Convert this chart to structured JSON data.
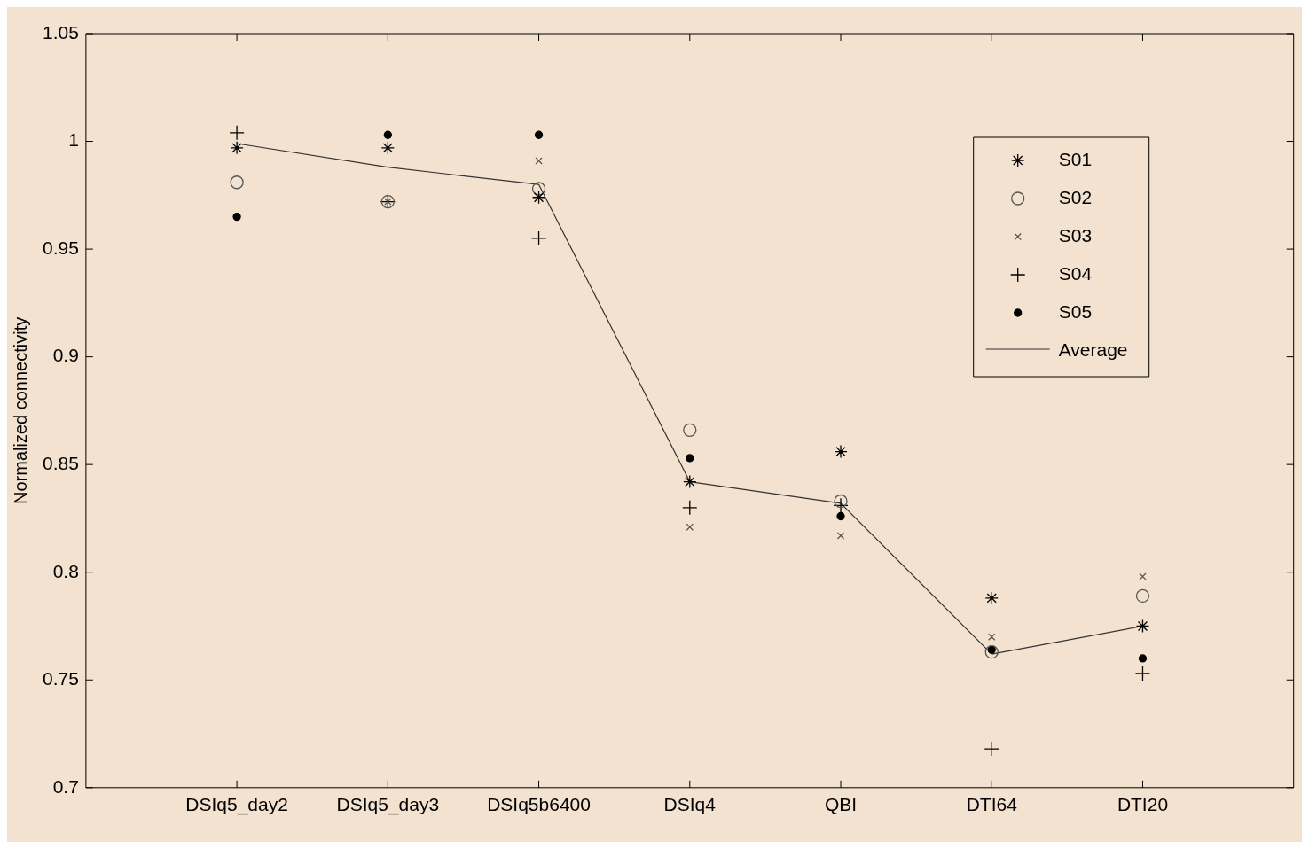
{
  "chart_data": {
    "type": "scatter",
    "ylabel": "Normalized connectivity",
    "categories": [
      "DSIq5_day2",
      "DSIq5_day3",
      "DSIq5b6400",
      "DSIq4",
      "QBI",
      "DTI64",
      "DTI20"
    ],
    "ylim": [
      0.7,
      1.05
    ],
    "yticks": [
      0.7,
      0.75,
      0.8,
      0.85,
      0.9,
      0.95,
      1,
      1.05
    ],
    "grid": false,
    "legend": "top right",
    "series": [
      {
        "name": "S01",
        "type": "scatter",
        "marker": "cross",
        "color": "#000000",
        "values": [
          0.997,
          0.997,
          0.974,
          0.842,
          0.856,
          0.788,
          0.775
        ]
      },
      {
        "name": "S02",
        "type": "scatter",
        "marker": "circle",
        "color": "#555555",
        "values": [
          0.981,
          0.972,
          0.978,
          0.866,
          0.833,
          0.763,
          0.789
        ]
      },
      {
        "name": "S03",
        "type": "scatter",
        "marker": "cross",
        "color": "#555555",
        "values": [
          null,
          0.972,
          0.991,
          0.821,
          0.817,
          0.77,
          0.798
        ]
      },
      {
        "name": "S04",
        "type": "scatter",
        "marker": "cross",
        "color": "#000000",
        "values": [
          1.004,
          0.972,
          0.955,
          0.83,
          0.831,
          0.718,
          0.753
        ]
      },
      {
        "name": "S05",
        "type": "scatter",
        "marker": "circle",
        "color": "#000000",
        "values": [
          0.965,
          1.003,
          1.003,
          0.853,
          0.826,
          0.764,
          0.76
        ]
      },
      {
        "name": "Average",
        "type": "line",
        "marker": "none",
        "line_style": "solid",
        "color": "#333333",
        "values": [
          0.999,
          0.988,
          0.98,
          0.842,
          0.832,
          0.762,
          0.775
        ]
      }
    ]
  }
}
